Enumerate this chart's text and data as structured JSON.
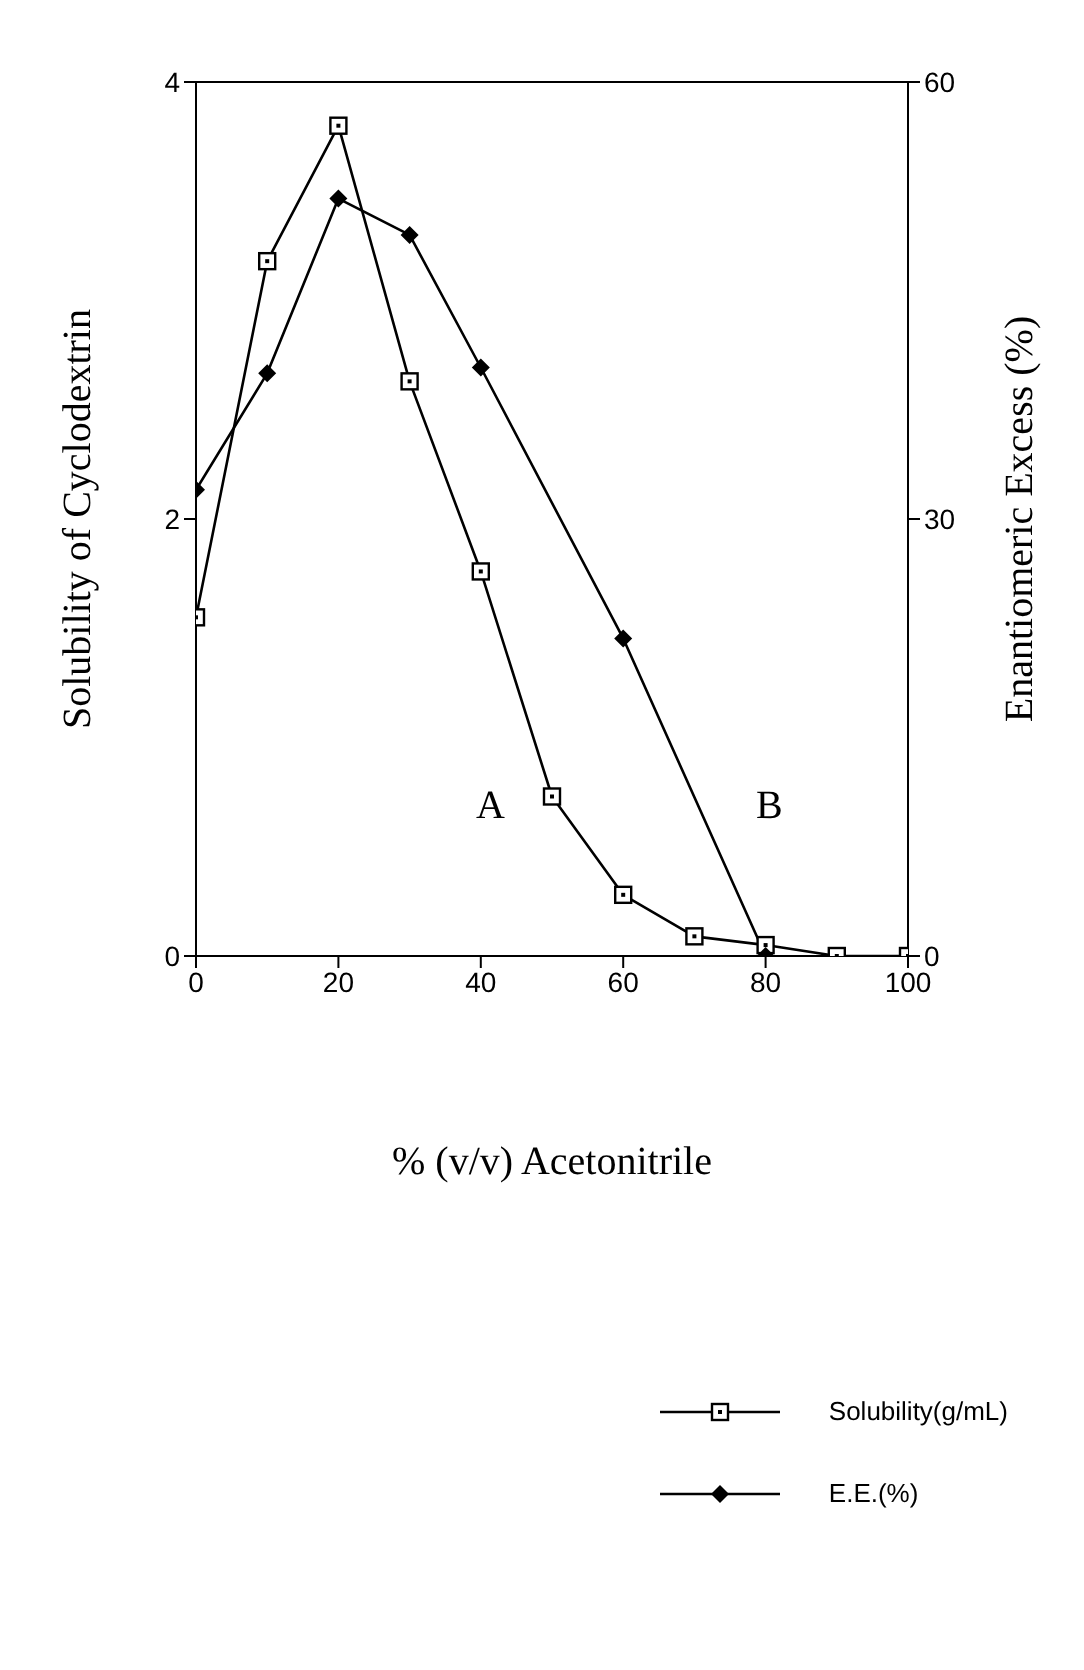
{
  "chart_data": {
    "type": "line",
    "xlabel": "% (v/v) Acetonitrile",
    "ylabel": "Solubility of Cyclodextrin",
    "y2label": "Enantiomeric Excess (%)",
    "xlim": [
      0,
      100
    ],
    "xticks": [
      0,
      20,
      40,
      60,
      80,
      100
    ],
    "ylim": [
      0,
      4
    ],
    "yticks": [
      0,
      2,
      4
    ],
    "y2lim": [
      0,
      60
    ],
    "y2ticks": [
      0,
      30,
      60
    ],
    "grid": false,
    "legend": "bottom right",
    "line_style": "solid",
    "series": [
      {
        "name": "Solubility(g/mL)",
        "color": "#000000",
        "marker": "square",
        "x": [
          0,
          10,
          20,
          30,
          40,
          50,
          60,
          70,
          80,
          90,
          100
        ],
        "values": [
          1.55,
          3.18,
          3.8,
          2.63,
          1.76,
          0.73,
          0.28,
          0.09,
          0.05,
          0,
          0
        ]
      },
      {
        "name": "E.E.(%)",
        "color": "#000000",
        "marker": "diamond",
        "axis": "y2",
        "x": [
          0,
          10,
          20,
          30,
          40,
          60,
          80
        ],
        "values": [
          32,
          40,
          52,
          49.5,
          40.4,
          21.8,
          0
        ]
      }
    ],
    "annotations": [
      "A",
      "B"
    ]
  }
}
